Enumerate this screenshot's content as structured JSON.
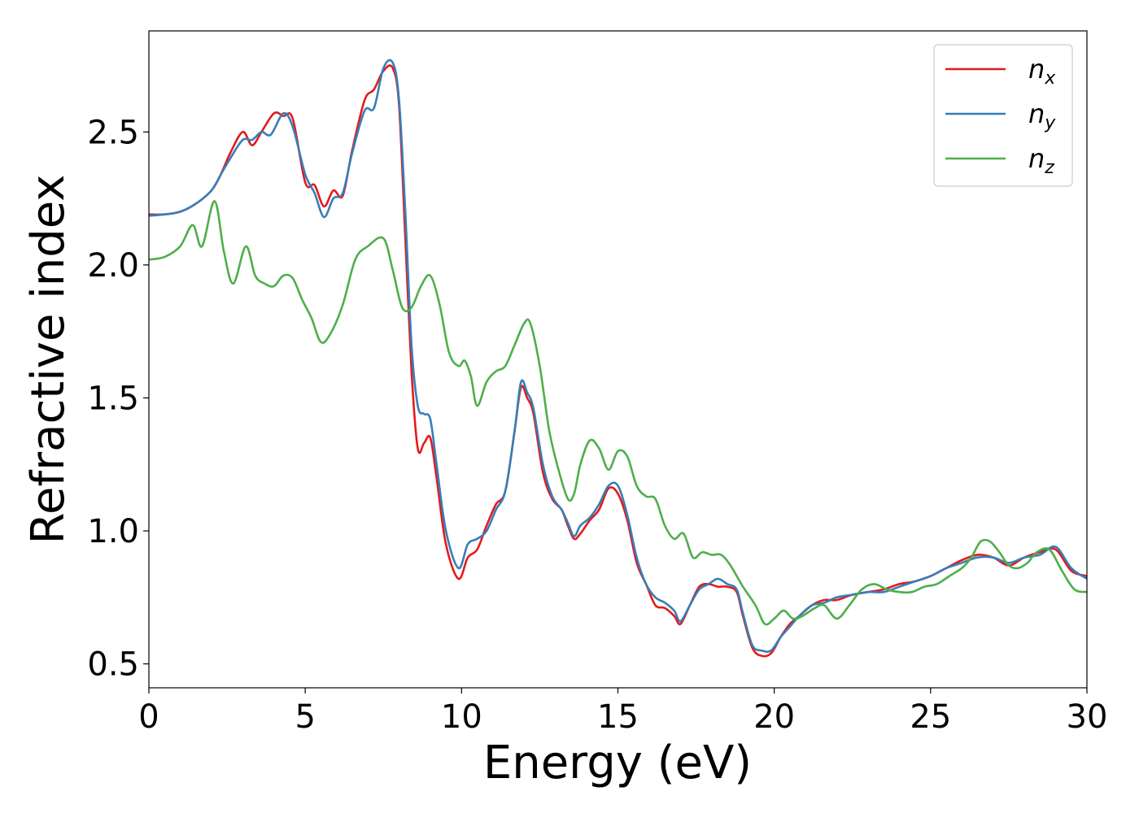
{
  "chart_data": {
    "type": "line",
    "xlabel": "Energy (eV)",
    "ylabel": "Refractive index",
    "xlim": [
      0,
      30
    ],
    "ylim": [
      0.41,
      2.88
    ],
    "xticks": [
      0,
      5,
      10,
      15,
      20,
      25,
      30
    ],
    "xtick_labels": [
      "0",
      "5",
      "10",
      "15",
      "20",
      "25",
      "30"
    ],
    "yticks": [
      0.5,
      1.0,
      1.5,
      2.0,
      2.5
    ],
    "ytick_labels": [
      "0.5",
      "1.0",
      "1.5",
      "2.0",
      "2.5"
    ],
    "grid": false,
    "legend_position": "top-right",
    "series": [
      {
        "name": "n",
        "subscript": "x",
        "color": "#e41a1c",
        "x": [
          0,
          0.5,
          1,
          1.5,
          2,
          2.3,
          2.6,
          3,
          3.3,
          3.6,
          4,
          4.3,
          4.6,
          5,
          5.3,
          5.6,
          5.9,
          6.2,
          6.5,
          6.9,
          7.2,
          7.5,
          7.8,
          8.0,
          8.2,
          8.4,
          8.6,
          8.8,
          9.0,
          9.2,
          9.5,
          9.9,
          10.2,
          10.5,
          10.8,
          11.1,
          11.4,
          11.7,
          11.9,
          12.1,
          12.3,
          12.6,
          12.9,
          13.2,
          13.4,
          13.6,
          13.8,
          14.1,
          14.4,
          14.7,
          15.0,
          15.3,
          15.6,
          15.9,
          16.2,
          16.5,
          16.8,
          17.0,
          17.3,
          17.6,
          17.9,
          18.2,
          18.5,
          18.8,
          19.0,
          19.3,
          19.6,
          19.9,
          20.2,
          20.5,
          20.8,
          21.2,
          21.6,
          22.0,
          22.5,
          23.0,
          23.5,
          24.0,
          24.5,
          25.0,
          25.5,
          26.0,
          26.5,
          27.0,
          27.5,
          28.0,
          28.5,
          29.0,
          29.5,
          30.0
        ],
        "values": [
          2.19,
          2.19,
          2.2,
          2.23,
          2.28,
          2.34,
          2.42,
          2.5,
          2.45,
          2.5,
          2.57,
          2.56,
          2.55,
          2.31,
          2.3,
          2.22,
          2.28,
          2.26,
          2.43,
          2.62,
          2.66,
          2.73,
          2.74,
          2.6,
          2.1,
          1.6,
          1.31,
          1.33,
          1.35,
          1.2,
          0.95,
          0.82,
          0.9,
          0.93,
          1.02,
          1.1,
          1.15,
          1.38,
          1.54,
          1.5,
          1.44,
          1.22,
          1.12,
          1.08,
          1.02,
          0.97,
          0.99,
          1.04,
          1.08,
          1.16,
          1.14,
          1.04,
          0.88,
          0.8,
          0.72,
          0.71,
          0.68,
          0.65,
          0.72,
          0.79,
          0.8,
          0.79,
          0.79,
          0.77,
          0.68,
          0.56,
          0.53,
          0.54,
          0.6,
          0.65,
          0.68,
          0.72,
          0.74,
          0.74,
          0.76,
          0.77,
          0.78,
          0.8,
          0.81,
          0.83,
          0.86,
          0.89,
          0.91,
          0.9,
          0.87,
          0.9,
          0.92,
          0.93,
          0.85,
          0.83
        ]
      },
      {
        "name": "n",
        "subscript": "y",
        "color": "#377eb8",
        "x": [
          0,
          0.5,
          1,
          1.5,
          2,
          2.3,
          2.6,
          3,
          3.3,
          3.6,
          3.9,
          4.3,
          4.6,
          5,
          5.3,
          5.6,
          5.9,
          6.2,
          6.5,
          6.9,
          7.2,
          7.5,
          7.8,
          8.0,
          8.2,
          8.4,
          8.6,
          8.8,
          9.0,
          9.2,
          9.5,
          9.9,
          10.2,
          10.5,
          10.8,
          11.1,
          11.4,
          11.7,
          11.9,
          12.1,
          12.3,
          12.6,
          12.9,
          13.2,
          13.4,
          13.6,
          13.8,
          14.1,
          14.4,
          14.7,
          15.0,
          15.3,
          15.6,
          15.9,
          16.2,
          16.5,
          16.8,
          17.0,
          17.3,
          17.6,
          17.9,
          18.2,
          18.5,
          18.8,
          19.0,
          19.3,
          19.6,
          19.9,
          20.2,
          20.5,
          20.8,
          21.2,
          21.6,
          22.0,
          22.5,
          23.0,
          23.5,
          24.0,
          24.5,
          25.0,
          25.5,
          26.0,
          26.5,
          27.0,
          27.5,
          28.0,
          28.5,
          29.0,
          29.5,
          30.0
        ],
        "values": [
          2.185,
          2.19,
          2.2,
          2.23,
          2.28,
          2.34,
          2.4,
          2.47,
          2.47,
          2.5,
          2.49,
          2.57,
          2.52,
          2.34,
          2.27,
          2.18,
          2.25,
          2.27,
          2.42,
          2.58,
          2.59,
          2.74,
          2.76,
          2.62,
          2.2,
          1.7,
          1.47,
          1.44,
          1.42,
          1.25,
          1.0,
          0.86,
          0.95,
          0.97,
          1.0,
          1.08,
          1.15,
          1.38,
          1.56,
          1.52,
          1.46,
          1.25,
          1.13,
          1.08,
          1.03,
          0.98,
          1.02,
          1.05,
          1.1,
          1.17,
          1.17,
          1.06,
          0.9,
          0.8,
          0.75,
          0.73,
          0.7,
          0.66,
          0.72,
          0.78,
          0.8,
          0.82,
          0.8,
          0.78,
          0.69,
          0.57,
          0.55,
          0.55,
          0.6,
          0.64,
          0.68,
          0.72,
          0.73,
          0.75,
          0.76,
          0.77,
          0.77,
          0.79,
          0.81,
          0.83,
          0.86,
          0.88,
          0.9,
          0.9,
          0.88,
          0.9,
          0.91,
          0.94,
          0.86,
          0.82
        ]
      },
      {
        "name": "n",
        "subscript": "z",
        "color": "#4daf4a",
        "x": [
          0,
          0.5,
          1,
          1.4,
          1.7,
          2.1,
          2.4,
          2.7,
          3.1,
          3.4,
          3.7,
          4.0,
          4.3,
          4.6,
          4.9,
          5.2,
          5.5,
          5.8,
          6.2,
          6.6,
          7.0,
          7.5,
          7.8,
          8.1,
          8.4,
          8.7,
          9.0,
          9.3,
          9.6,
          9.9,
          10.1,
          10.3,
          10.5,
          10.8,
          11.1,
          11.4,
          11.7,
          12.0,
          12.2,
          12.5,
          12.8,
          13.1,
          13.4,
          13.6,
          13.8,
          14.1,
          14.4,
          14.7,
          15.0,
          15.3,
          15.6,
          15.9,
          16.2,
          16.5,
          16.8,
          17.1,
          17.4,
          17.7,
          18.0,
          18.3,
          18.6,
          19.0,
          19.4,
          19.7,
          20.0,
          20.3,
          20.6,
          20.9,
          21.3,
          21.6,
          22.0,
          22.4,
          22.8,
          23.2,
          23.6,
          24.0,
          24.4,
          24.8,
          25.2,
          25.6,
          26.0,
          26.3,
          26.6,
          26.9,
          27.2,
          27.5,
          27.8,
          28.1,
          28.4,
          28.8,
          29.2,
          29.6,
          30.0
        ],
        "values": [
          2.02,
          2.03,
          2.07,
          2.15,
          2.07,
          2.24,
          2.05,
          1.93,
          2.07,
          1.96,
          1.93,
          1.92,
          1.96,
          1.95,
          1.87,
          1.8,
          1.71,
          1.74,
          1.85,
          2.02,
          2.07,
          2.1,
          1.98,
          1.84,
          1.84,
          1.92,
          1.96,
          1.85,
          1.67,
          1.62,
          1.64,
          1.58,
          1.47,
          1.56,
          1.6,
          1.62,
          1.7,
          1.78,
          1.78,
          1.62,
          1.38,
          1.23,
          1.12,
          1.14,
          1.25,
          1.34,
          1.31,
          1.23,
          1.3,
          1.28,
          1.17,
          1.13,
          1.12,
          1.02,
          0.97,
          0.99,
          0.9,
          0.92,
          0.91,
          0.91,
          0.87,
          0.79,
          0.72,
          0.65,
          0.67,
          0.7,
          0.67,
          0.68,
          0.71,
          0.72,
          0.67,
          0.72,
          0.78,
          0.8,
          0.78,
          0.77,
          0.77,
          0.79,
          0.8,
          0.83,
          0.86,
          0.9,
          0.96,
          0.96,
          0.92,
          0.87,
          0.86,
          0.88,
          0.92,
          0.93,
          0.85,
          0.78,
          0.77
        ]
      }
    ]
  }
}
